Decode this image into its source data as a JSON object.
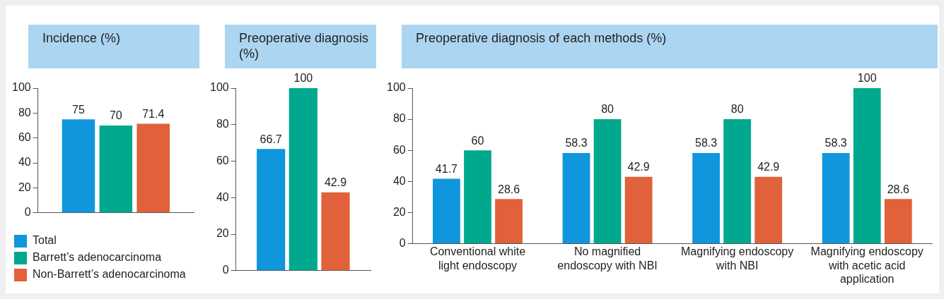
{
  "chart_data": [
    {
      "type": "bar",
      "title": "Incidence (%)",
      "categories": [
        null
      ],
      "series": [
        {
          "name": "Total",
          "color": "#0f96dc",
          "values": [
            75
          ]
        },
        {
          "name": "Barrett’s adenocarcinoma",
          "color": "#00a88e",
          "values": [
            70
          ]
        },
        {
          "name": "Non-Barrett’s adenocarcinoma",
          "color": "#e0613a",
          "values": [
            71.4
          ]
        }
      ],
      "ylim": [
        0,
        100
      ],
      "yticks": [
        0,
        20,
        40,
        60,
        80,
        100
      ],
      "grid": false,
      "data_labels": true,
      "legend": "bottom left"
    },
    {
      "type": "bar",
      "title": "Preoperative diagnosis (%)",
      "categories": [
        null
      ],
      "series": [
        {
          "color": "#0f96dc",
          "values": [
            66.7
          ]
        },
        {
          "color": "#00a88e",
          "values": [
            100
          ]
        },
        {
          "color": "#e0613a",
          "values": [
            42.9
          ]
        }
      ],
      "ylim": [
        0,
        100
      ],
      "yticks": [
        0,
        20,
        40,
        60,
        80,
        100
      ],
      "grid": false,
      "data_labels": true
    },
    {
      "type": "bar",
      "title": "Preoperative diagnosis of each methods (%)",
      "categories": [
        "Conventional white light endoscopy",
        "No magnified endoscopy with NBI",
        "Magnifying endoscopy with NBI",
        "Magnifying endoscopy with acetic acid application"
      ],
      "series": [
        {
          "color": "#0f96dc",
          "values": [
            41.7,
            58.3,
            58.3,
            58.3
          ]
        },
        {
          "color": "#00a88e",
          "values": [
            60,
            80,
            80,
            100
          ]
        },
        {
          "color": "#e0613a",
          "values": [
            28.6,
            42.9,
            42.9,
            28.6
          ]
        }
      ],
      "ylim": [
        0,
        100
      ],
      "yticks": [
        0,
        20,
        40,
        60,
        80,
        100
      ],
      "grid": false,
      "data_labels": true
    }
  ]
}
